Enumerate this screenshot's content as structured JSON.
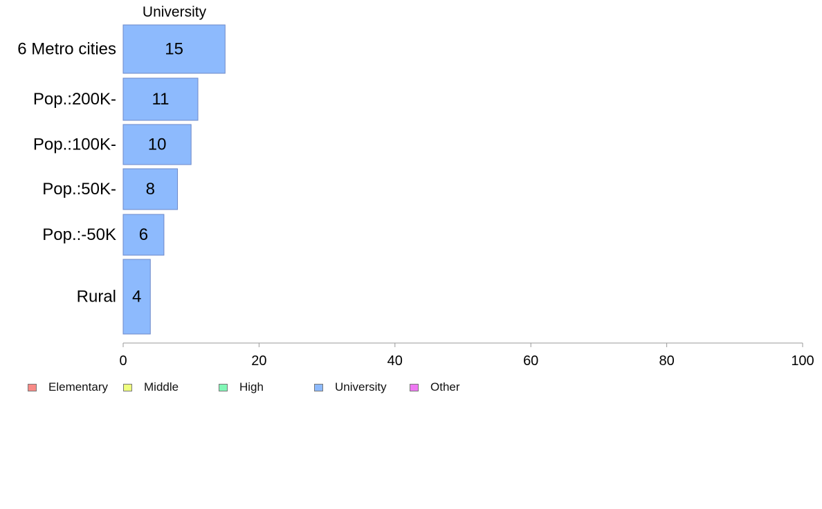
{
  "chart_data": {
    "type": "bar",
    "orientation": "horizontal",
    "title": "University",
    "categories": [
      "6 Metro cities",
      "Pop.:200K-",
      "Pop.:100K-",
      "Pop.:50K-",
      "Pop.:-50K",
      "Rural"
    ],
    "values": [
      15,
      11,
      10,
      8,
      6,
      4
    ],
    "data_labels": [
      "15",
      "11",
      "10",
      "8",
      "6",
      "4"
    ],
    "xlim": [
      0,
      100
    ],
    "x_ticks": [
      0,
      20,
      40,
      60,
      80,
      100
    ],
    "x_tick_labels": [
      "0",
      "20",
      "40",
      "60",
      "80",
      "100"
    ],
    "xlabel": "",
    "ylabel": "",
    "grid": false,
    "legend_position": "bottom-left",
    "bar_color": "#8dbafd",
    "bar_border_color": "#6d88c8",
    "legend": [
      {
        "label": "Elementary",
        "color": "#f88a86"
      },
      {
        "label": "Middle",
        "color": "#efff7f"
      },
      {
        "label": "High",
        "color": "#81f7b6"
      },
      {
        "label": "University",
        "color": "#8dbafd"
      },
      {
        "label": "Other",
        "color": "#ee78f2"
      }
    ]
  }
}
